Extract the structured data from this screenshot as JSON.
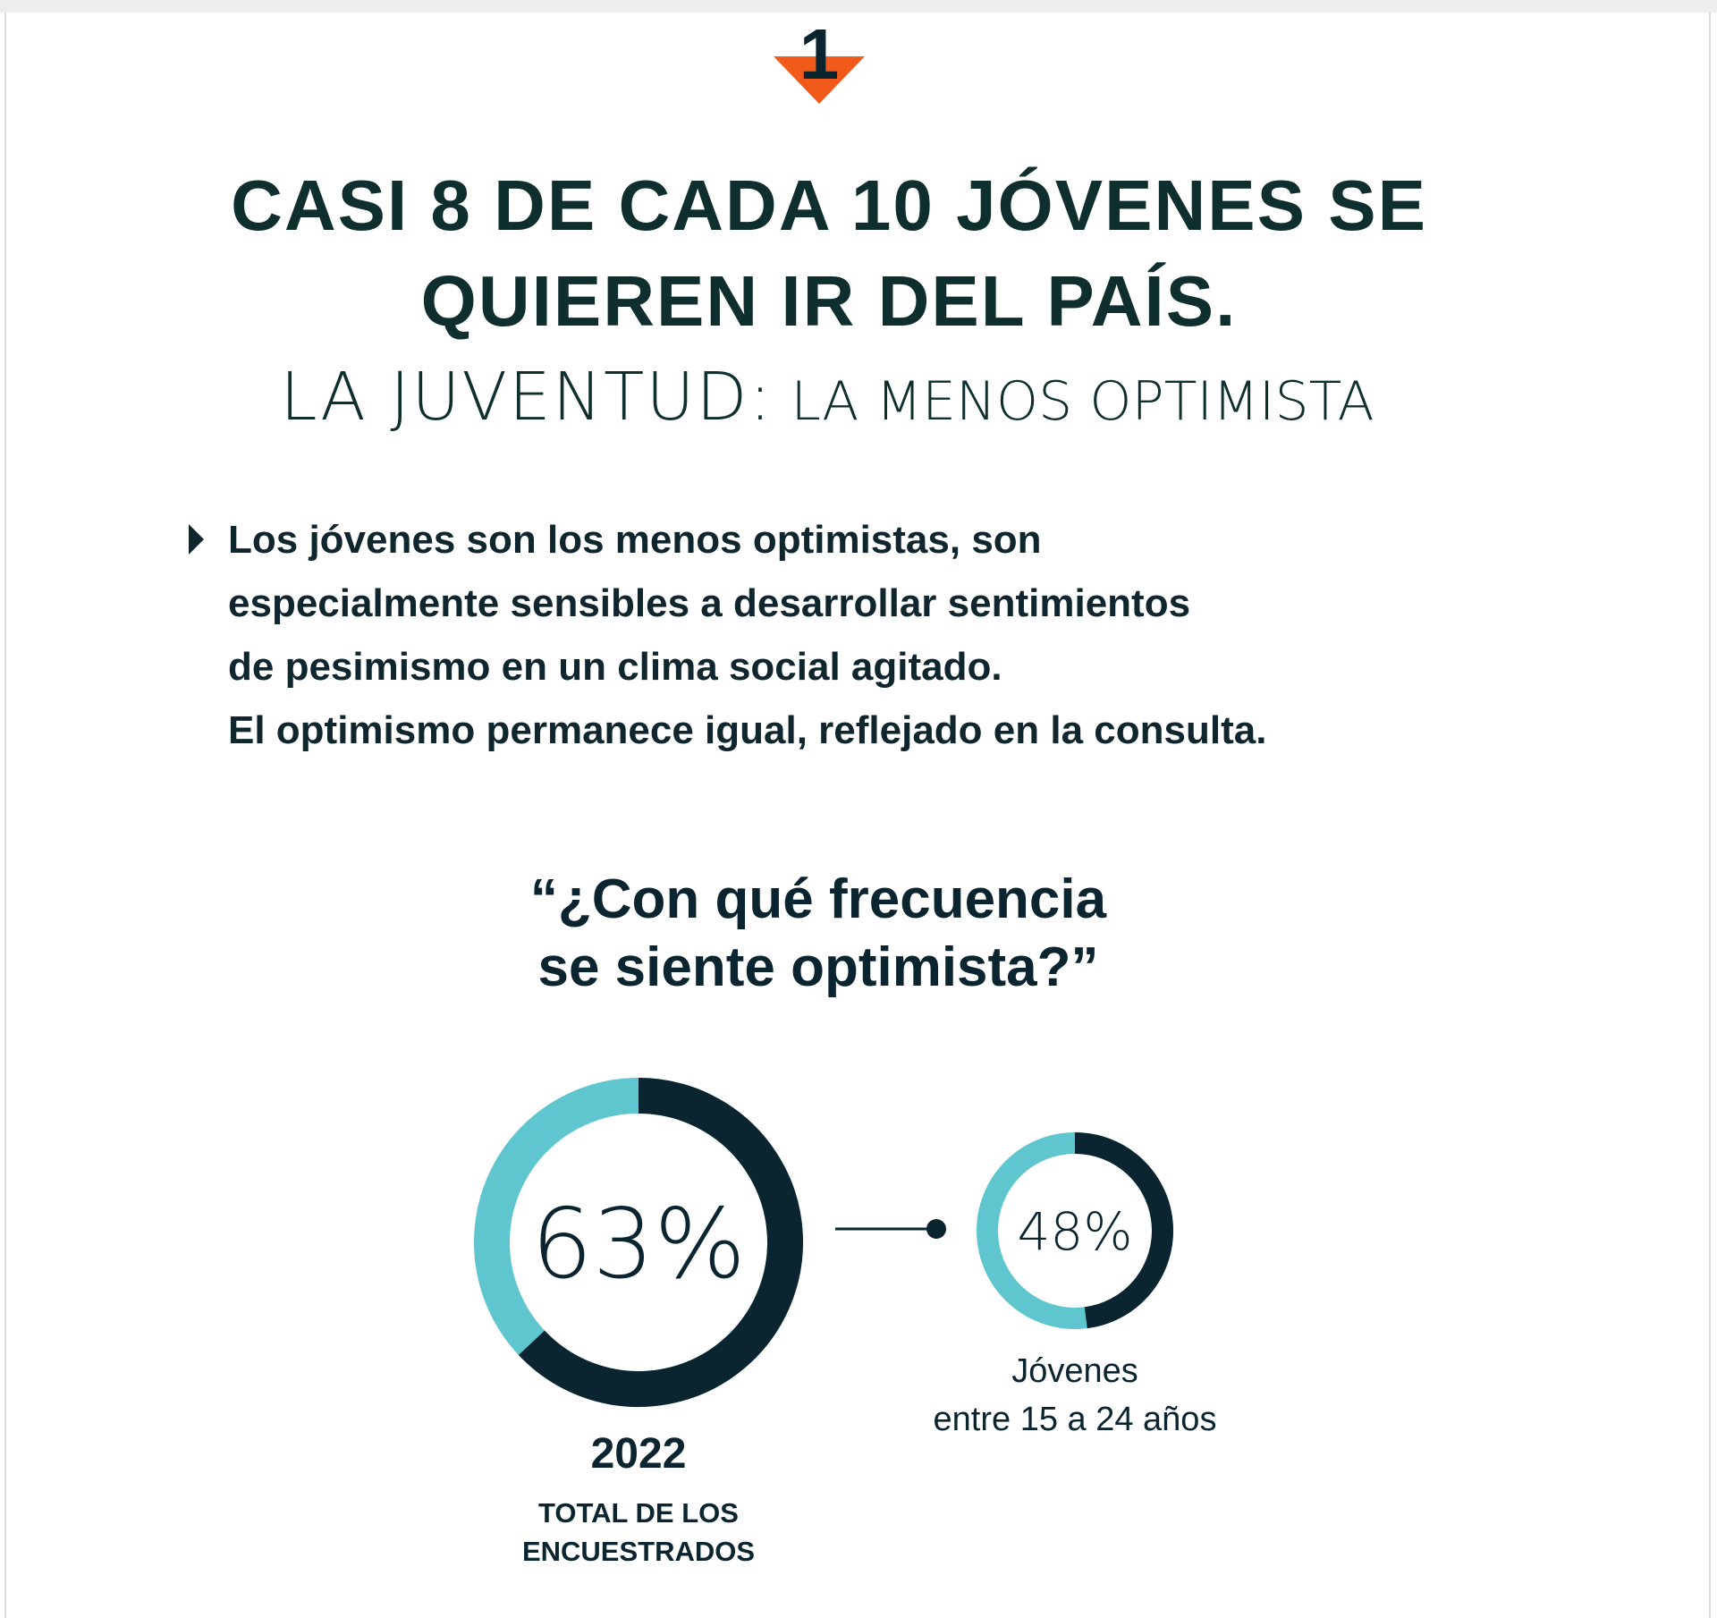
{
  "header": {
    "badge": "1",
    "title": [
      "CASI 8 DE CADA 10 JÓVENES SE",
      "QUIEREN IR DEL PAÍS."
    ],
    "subtitle_big": "LA JUVENTUD:",
    "subtitle_small": "LA MENOS OPTIMISTA"
  },
  "bullet": [
    "Los jóvenes son los menos optimistas, son",
    "especialmente sensibles a desarrollar sentimientos",
    "de pesimismo en un clima social agitado.",
    "El optimismo permanece igual, reflejado en la consulta."
  ],
  "question": [
    "“¿Con qué frecuencia",
    "se siente optimista?”"
  ],
  "chart_data": [
    {
      "type": "donut",
      "value": 63,
      "value_label": "63%",
      "color": "#0b2530",
      "track_color": "#5fc6cf",
      "caption": [
        "2022",
        "TOTAL DE LOS",
        "ENCUESTRADOS"
      ]
    },
    {
      "type": "donut",
      "value": 48,
      "value_label": "48%",
      "color": "#0b2530",
      "track_color": "#5fc6cf",
      "caption": [
        "Jóvenes",
        "entre 15 a 24 años"
      ]
    }
  ]
}
